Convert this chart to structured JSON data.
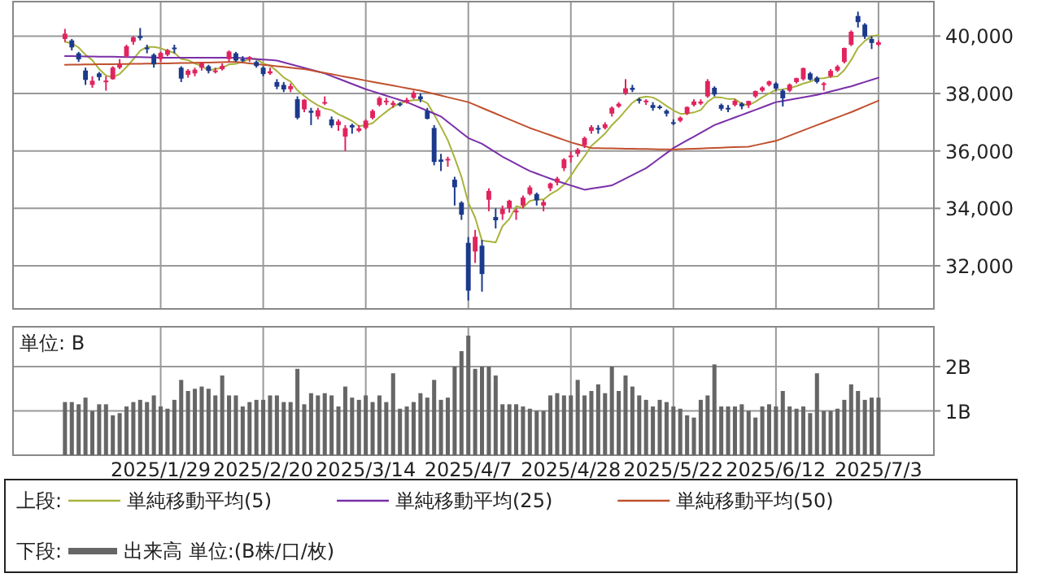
{
  "chart_data": [
    {
      "type": "candlestick",
      "tick_labels": "y",
      "grid": true,
      "legend": "bottom",
      "legend_title": "上段:",
      "categories": [
        null,
        null,
        null,
        null,
        null,
        null,
        null,
        null,
        null,
        null,
        null,
        null,
        null,
        null,
        "2025/1/29",
        null,
        null,
        null,
        null,
        null,
        null,
        null,
        null,
        null,
        null,
        null,
        null,
        null,
        null,
        "2025/2/20",
        null,
        null,
        null,
        null,
        null,
        null,
        null,
        null,
        null,
        null,
        null,
        null,
        null,
        null,
        "2025/3/14",
        null,
        null,
        null,
        null,
        null,
        null,
        null,
        null,
        null,
        null,
        null,
        null,
        null,
        null,
        "2025/4/7",
        null,
        null,
        null,
        null,
        null,
        null,
        null,
        null,
        null,
        null,
        null,
        null,
        null,
        null,
        "2025/4/28",
        null,
        null,
        null,
        null,
        null,
        null,
        null,
        null,
        null,
        null,
        null,
        null,
        null,
        null,
        "2025/5/22",
        null,
        null,
        null,
        null,
        null,
        null,
        null,
        null,
        null,
        null,
        null,
        null,
        null,
        null,
        "2025/6/12",
        null,
        null,
        null,
        null,
        null,
        null,
        null,
        null,
        null,
        null,
        null,
        null,
        null,
        null,
        "2025/7/3"
      ],
      "ylim": [
        30500,
        41200
      ],
      "yticks": [
        {
          "value": 32000,
          "label": "32,000"
        },
        {
          "value": 34000,
          "label": "34,000"
        },
        {
          "value": 36000,
          "label": "36,000"
        },
        {
          "value": 38000,
          "label": "38,000"
        },
        {
          "value": 40000,
          "label": "40,000"
        }
      ],
      "ohlc": [
        [
          39900,
          40250,
          39800,
          40083
        ],
        [
          39850,
          39900,
          39500,
          39605
        ],
        [
          39400,
          39450,
          39100,
          39190
        ],
        [
          38800,
          38900,
          38300,
          38474
        ],
        [
          38300,
          38600,
          38200,
          38444
        ],
        [
          38700,
          38750,
          38450,
          38572
        ],
        [
          38450,
          38600,
          38100,
          38451
        ],
        [
          38500,
          38950,
          38480,
          38902
        ],
        [
          38900,
          39200,
          38850,
          39027
        ],
        [
          39300,
          39700,
          39250,
          39646
        ],
        [
          39800,
          40000,
          39700,
          39958
        ],
        [
          40000,
          40280,
          39850,
          39931
        ],
        [
          39600,
          39700,
          39400,
          39565
        ],
        [
          39350,
          39400,
          38900,
          39016
        ],
        [
          39200,
          39450,
          39100,
          39414
        ],
        [
          39350,
          39550,
          39300,
          39513
        ],
        [
          39600,
          39700,
          39400,
          39572
        ],
        [
          38900,
          38950,
          38400,
          38520
        ],
        [
          38650,
          38850,
          38550,
          38798
        ],
        [
          38700,
          38900,
          38600,
          38831
        ],
        [
          38900,
          39100,
          38800,
          39066
        ],
        [
          38950,
          39000,
          38700,
          38787
        ],
        [
          38800,
          38900,
          38700,
          38801
        ],
        [
          38850,
          39050,
          38800,
          38963
        ],
        [
          39200,
          39500,
          39100,
          39461
        ],
        [
          39400,
          39450,
          39100,
          39149
        ],
        [
          39200,
          39300,
          39100,
          39174
        ],
        [
          39200,
          39300,
          39100,
          39270
        ],
        [
          39100,
          39150,
          38900,
          38957
        ],
        [
          38900,
          38950,
          38600,
          38678
        ],
        [
          38700,
          38900,
          38650,
          38776
        ],
        [
          38400,
          38500,
          38150,
          38237
        ],
        [
          38300,
          38400,
          38050,
          38142
        ],
        [
          38150,
          38350,
          38050,
          38256
        ],
        [
          37800,
          37900,
          37100,
          37155
        ],
        [
          37450,
          37800,
          37350,
          37785
        ],
        [
          37400,
          37500,
          36900,
          37331
        ],
        [
          37200,
          37500,
          37100,
          37418
        ],
        [
          37650,
          37900,
          37600,
          37704
        ],
        [
          37100,
          37200,
          36800,
          36887
        ],
        [
          36900,
          37100,
          36700,
          37028
        ],
        [
          36500,
          36900,
          36000,
          36793
        ],
        [
          36900,
          36950,
          36600,
          36819
        ],
        [
          36700,
          36900,
          36650,
          36790
        ],
        [
          36800,
          37100,
          36750,
          37053
        ],
        [
          37150,
          37450,
          37100,
          37396
        ],
        [
          37600,
          37900,
          37550,
          37845
        ],
        [
          37750,
          37850,
          37600,
          37751
        ],
        [
          37600,
          37750,
          37500,
          37677
        ],
        [
          37650,
          37700,
          37550,
          37608
        ],
        [
          37700,
          37850,
          37650,
          37780
        ],
        [
          37850,
          38100,
          37800,
          38027
        ],
        [
          37900,
          38000,
          37700,
          37799
        ],
        [
          37400,
          37500,
          37100,
          37120
        ],
        [
          36800,
          36900,
          35500,
          35617
        ],
        [
          35700,
          35900,
          35300,
          35624
        ],
        [
          35700,
          35800,
          35450,
          35725
        ],
        [
          35000,
          35100,
          34100,
          34735
        ],
        [
          34200,
          34250,
          33600,
          33780
        ],
        [
          32800,
          33000,
          30792,
          31136
        ],
        [
          32500,
          33250,
          32100,
          33012
        ],
        [
          32700,
          32900,
          31100,
          31714
        ],
        [
          34300,
          34700,
          33900,
          34609
        ],
        [
          33700,
          34000,
          33300,
          33585
        ],
        [
          33800,
          34100,
          33600,
          33982
        ],
        [
          34000,
          34300,
          33850,
          34267
        ],
        [
          33900,
          34000,
          33600,
          33920
        ],
        [
          34100,
          34450,
          34000,
          34377
        ],
        [
          34500,
          34800,
          34450,
          34730
        ],
        [
          34500,
          34550,
          34100,
          34280
        ],
        [
          34100,
          34300,
          33900,
          34220
        ],
        [
          34700,
          34900,
          34600,
          34868
        ],
        [
          34900,
          35100,
          34800,
          35039
        ],
        [
          35400,
          35750,
          35300,
          35705
        ],
        [
          35800,
          36000,
          35600,
          35839
        ],
        [
          35900,
          36100,
          35800,
          36045
        ],
        [
          36200,
          36500,
          36100,
          36452
        ],
        [
          36700,
          36900,
          36600,
          36830
        ],
        [
          36800,
          36900,
          36600,
          36780
        ],
        [
          36800,
          37000,
          36750,
          36928
        ],
        [
          37300,
          37550,
          37200,
          37503
        ],
        [
          37550,
          37700,
          37500,
          37644
        ],
        [
          38000,
          38500,
          37950,
          38183
        ],
        [
          38200,
          38300,
          38050,
          38128
        ],
        [
          37800,
          37850,
          37650,
          37755
        ],
        [
          37700,
          37800,
          37600,
          37753
        ],
        [
          37600,
          37700,
          37400,
          37498
        ],
        [
          37550,
          37600,
          37450,
          37529
        ],
        [
          37400,
          37450,
          37200,
          37299
        ],
        [
          37000,
          37100,
          36900,
          36985
        ],
        [
          37050,
          37200,
          37000,
          37160
        ],
        [
          37300,
          37550,
          37250,
          37532
        ],
        [
          37600,
          37800,
          37550,
          37724
        ],
        [
          37650,
          37800,
          37600,
          37722
        ],
        [
          37900,
          38500,
          37850,
          38432
        ],
        [
          38200,
          38250,
          37900,
          37965
        ],
        [
          37600,
          37650,
          37400,
          37470
        ],
        [
          37500,
          37600,
          37350,
          37446
        ],
        [
          37600,
          37800,
          37550,
          37747
        ],
        [
          37650,
          37700,
          37450,
          37554
        ],
        [
          37600,
          37750,
          37500,
          37741
        ],
        [
          37900,
          38100,
          37850,
          38089
        ],
        [
          38100,
          38250,
          38050,
          38211
        ],
        [
          38300,
          38450,
          38250,
          38421
        ],
        [
          38350,
          38400,
          38100,
          38173
        ],
        [
          38100,
          38150,
          37550,
          37834
        ],
        [
          38100,
          38350,
          38050,
          38311
        ],
        [
          38400,
          38550,
          38350,
          38536
        ],
        [
          38500,
          38900,
          38450,
          38885
        ],
        [
          38700,
          38750,
          38450,
          38488
        ],
        [
          38550,
          38600,
          38350,
          38403
        ],
        [
          38350,
          38400,
          38100,
          38354
        ],
        [
          38600,
          38850,
          38550,
          38790
        ],
        [
          38800,
          39000,
          38750,
          38942
        ],
        [
          39100,
          39600,
          39050,
          39585
        ],
        [
          39700,
          40200,
          39650,
          40150
        ],
        [
          40700,
          40850,
          40300,
          40487
        ],
        [
          40400,
          40450,
          39900,
          39986
        ],
        [
          39900,
          40000,
          39550,
          39762
        ],
        [
          39700,
          39850,
          39650,
          39785
        ]
      ],
      "colors": [
        "#e0245e",
        "#1c3a8c",
        "#1c3a8c",
        "#1c3a8c",
        "#e0245e",
        "#1c3a8c",
        "#e0245e",
        "#e0245e",
        "#e0245e",
        "#e0245e",
        "#e0245e",
        "#1c3a8c",
        "#1c3a8c",
        "#1c3a8c",
        "#e0245e",
        "#e0245e",
        "#1c3a8c",
        "#1c3a8c",
        "#e0245e",
        "#e0245e",
        "#e0245e",
        "#1c3a8c",
        "#e0245e",
        "#e0245e",
        "#e0245e",
        "#1c3a8c",
        "#1c3a8c",
        "#e0245e",
        "#1c3a8c",
        "#1c3a8c",
        "#e0245e",
        "#1c3a8c",
        "#1c3a8c",
        "#e0245e",
        "#1c3a8c",
        "#e0245e",
        "#1c3a8c",
        "#e0245e",
        "#e0245e",
        "#1c3a8c",
        "#e0245e",
        "#e0245e",
        "#1c3a8c",
        "#e0245e",
        "#e0245e",
        "#e0245e",
        "#e0245e",
        "#e0245e",
        "#e0245e",
        "#1c3a8c",
        "#e0245e",
        "#e0245e",
        "#1c3a8c",
        "#1c3a8c",
        "#1c3a8c",
        "#1c3a8c",
        "#e0245e",
        "#1c3a8c",
        "#1c3a8c",
        "#1c3a8c",
        "#e0245e",
        "#1c3a8c",
        "#e0245e",
        "#1c3a8c",
        "#e0245e",
        "#e0245e",
        "#e0245e",
        "#e0245e",
        "#e0245e",
        "#1c3a8c",
        "#e0245e",
        "#e0245e",
        "#e0245e",
        "#e0245e",
        "#e0245e",
        "#e0245e",
        "#e0245e",
        "#e0245e",
        "#1c3a8c",
        "#e0245e",
        "#e0245e",
        "#e0245e",
        "#e0245e",
        "#1c3a8c",
        "#1c3a8c",
        "#e0245e",
        "#1c3a8c",
        "#1c3a8c",
        "#1c3a8c",
        "#1c3a8c",
        "#e0245e",
        "#e0245e",
        "#e0245e",
        "#e0245e",
        "#e0245e",
        "#1c3a8c",
        "#1c3a8c",
        "#1c3a8c",
        "#e0245e",
        "#1c3a8c",
        "#e0245e",
        "#e0245e",
        "#e0245e",
        "#e0245e",
        "#1c3a8c",
        "#1c3a8c",
        "#e0245e",
        "#e0245e",
        "#e0245e",
        "#1c3a8c",
        "#1c3a8c",
        "#e0245e",
        "#e0245e",
        "#e0245e",
        "#e0245e",
        "#e0245e",
        "#1c3a8c",
        "#1c3a8c",
        "#1c3a8c",
        "#e0245e"
      ],
      "series": [
        {
          "type": "line",
          "name": "単純移動平均(5)",
          "color": "#a8b33c",
          "values": [
            39800,
            39750,
            39600,
            39350,
            39159,
            38857,
            38626,
            38569,
            38679,
            38920,
            39197,
            39493,
            39625,
            39623,
            39577,
            39488,
            39416,
            39207,
            39163,
            39047,
            38957,
            38800,
            38857,
            38890,
            39016,
            39032,
            39110,
            39203,
            39202,
            39046,
            38971,
            38784,
            38558,
            38418,
            38113,
            37915,
            37734,
            37589,
            37479,
            37425,
            37274,
            37166,
            37046,
            36863,
            36897,
            36970,
            37181,
            37367,
            37544,
            37655,
            37732,
            37769,
            37778,
            37667,
            37269,
            36837,
            36377,
            35764,
            35096,
            34200,
            33678,
            32875,
            32850,
            32811,
            33380,
            33631,
            34073,
            34026,
            34255,
            34315,
            34305,
            34495,
            34627,
            34822,
            35134,
            35499,
            35816,
            36174,
            36389,
            36607,
            36899,
            37137,
            37408,
            37677,
            37843,
            37893,
            37863,
            37733,
            37567,
            37413,
            37294,
            37301,
            37340,
            37425,
            37714,
            37875,
            37863,
            37807,
            37812,
            37636,
            37592,
            37715,
            37868,
            38003,
            38127,
            38146,
            38190,
            38255,
            38348,
            38411,
            38525,
            38533,
            38584,
            38595,
            38815,
            39164,
            39591,
            39830,
            39994,
            40034
          ]
        },
        {
          "type": "line",
          "name": "単純移動平均(25)",
          "color": "#7b2fa8",
          "values": [
            39300,
            39300,
            39295,
            39290,
            39290,
            39285,
            39280,
            39280,
            39275,
            39270,
            39270,
            39265,
            39260,
            39255,
            39250,
            39250,
            39250,
            39250,
            39250,
            39250,
            39250,
            39250,
            39250,
            39250,
            39250,
            39250,
            39233,
            39217,
            39200,
            39183,
            39167,
            39150,
            39086,
            39021,
            38957,
            38893,
            38829,
            38764,
            38700,
            38608,
            38517,
            38425,
            38333,
            38242,
            38150,
            38075,
            38000,
            37925,
            37850,
            37775,
            37700,
            37600,
            37500,
            37400,
            37300,
            37200,
            37012,
            36825,
            36637,
            36450,
            36350,
            36250,
            36100,
            35950,
            35800,
            35675,
            35550,
            35425,
            35300,
            35212,
            35125,
            35037,
            34950,
            34875,
            34800,
            34725,
            34650,
            34687,
            34725,
            34762,
            34800,
            34920,
            35040,
            35160,
            35280,
            35400,
            35575,
            35750,
            35925,
            36100,
            36233,
            36367,
            36500,
            36633,
            36767,
            36900,
            36989,
            37078,
            37167,
            37256,
            37344,
            37433,
            37522,
            37611,
            37700,
            37742,
            37783,
            37825,
            37867,
            37908,
            37950,
            38010,
            38070,
            38130,
            38190,
            38250,
            38325,
            38400,
            38475,
            38550
          ]
        },
        {
          "type": "line",
          "name": "単純移動平均(50)",
          "color": "#c0502e",
          "values": [
            39000,
            39003,
            39007,
            39010,
            39013,
            39017,
            39020,
            39023,
            39027,
            39030,
            39033,
            39037,
            39040,
            39043,
            39047,
            39050,
            39055,
            39060,
            39065,
            39070,
            39075,
            39080,
            39085,
            39090,
            39095,
            39100,
            39075,
            39050,
            39025,
            39000,
            38975,
            38950,
            38925,
            38900,
            38875,
            38850,
            38806,
            38761,
            38717,
            38672,
            38628,
            38583,
            38539,
            38494,
            38450,
            38406,
            38362,
            38319,
            38275,
            38231,
            38188,
            38144,
            38100,
            38043,
            37986,
            37929,
            37871,
            37814,
            37757,
            37700,
            37600,
            37500,
            37400,
            37300,
            37200,
            37100,
            37000,
            36900,
            36800,
            36717,
            36633,
            36550,
            36467,
            36383,
            36300,
            36233,
            36167,
            36100,
            36096,
            36092,
            36087,
            36083,
            36079,
            36075,
            36071,
            36067,
            36062,
            36058,
            36054,
            36050,
            36059,
            36068,
            36077,
            36086,
            36095,
            36105,
            36114,
            36123,
            36132,
            36141,
            36150,
            36200,
            36250,
            36300,
            36350,
            36442,
            36533,
            36625,
            36717,
            36808,
            36900,
            36990,
            37080,
            37170,
            37260,
            37350,
            37450,
            37550,
            37650,
            37750
          ]
        }
      ]
    },
    {
      "type": "bar",
      "grid": true,
      "legend": "bottom",
      "legend_title": "下段:",
      "annotations": [
        "単位: B"
      ],
      "categories": [
        null,
        null,
        null,
        null,
        null,
        null,
        null,
        null,
        null,
        null,
        null,
        null,
        null,
        null,
        "2025/1/29",
        null,
        null,
        null,
        null,
        null,
        null,
        null,
        null,
        null,
        null,
        null,
        null,
        null,
        null,
        "2025/2/20",
        null,
        null,
        null,
        null,
        null,
        null,
        null,
        null,
        null,
        null,
        null,
        null,
        null,
        null,
        "2025/3/14",
        null,
        null,
        null,
        null,
        null,
        null,
        null,
        null,
        null,
        null,
        null,
        null,
        null,
        null,
        "2025/4/7",
        null,
        null,
        null,
        null,
        null,
        null,
        null,
        null,
        null,
        null,
        null,
        null,
        null,
        null,
        "2025/4/28",
        null,
        null,
        null,
        null,
        null,
        null,
        null,
        null,
        null,
        null,
        null,
        null,
        null,
        null,
        "2025/5/22",
        null,
        null,
        null,
        null,
        null,
        null,
        null,
        null,
        null,
        null,
        null,
        null,
        null,
        null,
        "2025/6/12",
        null,
        null,
        null,
        null,
        null,
        null,
        null,
        null,
        null,
        null,
        null,
        null,
        null,
        null,
        "2025/7/3"
      ],
      "ylim": [
        0,
        2.9
      ],
      "yticks": [
        {
          "value": 1,
          "label": "1B"
        },
        {
          "value": 2,
          "label": "2B"
        }
      ],
      "series": [
        {
          "name": "出来高 単位:(B株/口/枚)",
          "color": "#666666",
          "values": [
            1.2,
            1.2,
            1.15,
            1.3,
            1.0,
            1.15,
            1.15,
            0.9,
            0.95,
            1.1,
            1.2,
            1.25,
            1.2,
            1.35,
            1.1,
            1.05,
            1.25,
            1.7,
            1.45,
            1.5,
            1.55,
            1.5,
            1.35,
            1.8,
            1.35,
            1.35,
            1.1,
            1.2,
            1.25,
            1.25,
            1.35,
            1.35,
            1.2,
            1.2,
            1.95,
            1.15,
            1.4,
            1.35,
            1.4,
            1.35,
            1.1,
            1.55,
            1.3,
            1.25,
            1.35,
            1.2,
            1.35,
            1.2,
            1.85,
            1.05,
            1.1,
            1.2,
            1.4,
            1.3,
            1.7,
            1.25,
            1.3,
            2.0,
            2.35,
            2.7,
            1.95,
            2.0,
            2.0,
            1.8,
            1.15,
            1.15,
            1.15,
            1.1,
            1.05,
            1.0,
            1.0,
            1.35,
            1.4,
            1.35,
            1.35,
            1.7,
            1.35,
            1.45,
            1.6,
            1.4,
            2.0,
            1.45,
            1.8,
            1.55,
            1.35,
            1.25,
            1.1,
            1.25,
            1.2,
            1.1,
            1.05,
            0.9,
            0.85,
            1.25,
            1.35,
            2.05,
            1.1,
            1.1,
            1.1,
            1.15,
            1.0,
            0.85,
            1.1,
            1.15,
            1.1,
            1.45,
            1.1,
            1.05,
            1.1,
            0.95,
            1.85,
            1.0,
            1.0,
            1.05,
            1.25,
            1.6,
            1.45,
            1.25,
            1.3,
            1.3
          ]
        }
      ]
    }
  ]
}
